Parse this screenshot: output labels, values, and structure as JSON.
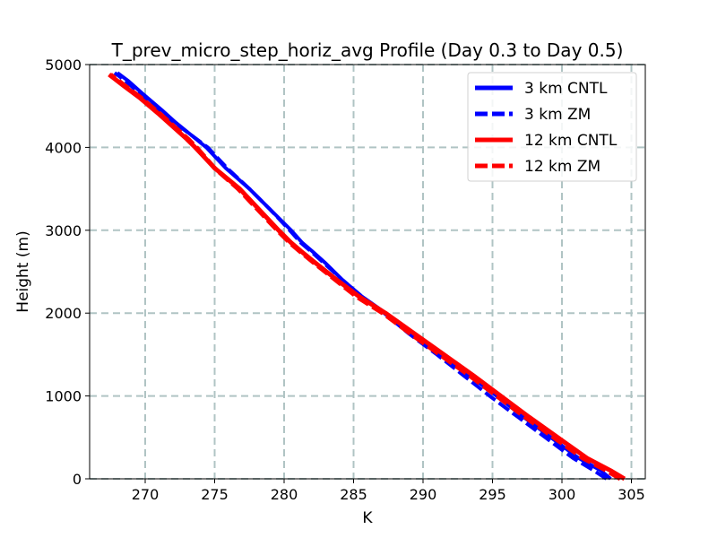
{
  "chart_data": {
    "type": "line",
    "title": "T_prev_micro_step_horiz_avg Profile (Day 0.3 to Day 0.5)",
    "xlabel": "K",
    "ylabel": "Height (m)",
    "xlim": [
      266,
      306
    ],
    "ylim": [
      0,
      5000
    ],
    "xticks": [
      270,
      275,
      280,
      285,
      290,
      295,
      300,
      305
    ],
    "yticks": [
      0,
      1000,
      2000,
      3000,
      4000,
      5000
    ],
    "grid": true,
    "legend_position": "top-right",
    "series": [
      {
        "name": "3 km CNTL",
        "color": "#0000ff",
        "style": "solid",
        "x": [
          303.5,
          302.8,
          301.2,
          299.2,
          297.2,
          295.3,
          293.3,
          291.3,
          289.3,
          287.3,
          285.6,
          284.2,
          283.0,
          282.0,
          281.3,
          280.5,
          279.0,
          277.5,
          275.8,
          274.4,
          273.3,
          272.2,
          271.2,
          269.8,
          268.8,
          268.0
        ],
        "y": [
          0,
          100,
          250,
          500,
          750,
          1000,
          1250,
          1500,
          1750,
          2000,
          2200,
          2400,
          2600,
          2750,
          2850,
          3000,
          3250,
          3500,
          3750,
          4000,
          4150,
          4300,
          4450,
          4650,
          4800,
          4900
        ]
      },
      {
        "name": "3 km ZM",
        "color": "#0000ff",
        "style": "dashed",
        "x": [
          303.2,
          302.3,
          300.8,
          298.8,
          296.8,
          294.8,
          292.9,
          291.0,
          289.0,
          287.2,
          285.6,
          284.2,
          282.9,
          281.9,
          281.2,
          280.4,
          279.0,
          277.5,
          275.9,
          274.5,
          273.3,
          272.1,
          271.0,
          269.6,
          268.6,
          267.8
        ],
        "y": [
          0,
          100,
          250,
          500,
          750,
          1000,
          1250,
          1500,
          1750,
          2000,
          2200,
          2400,
          2600,
          2750,
          2850,
          3000,
          3250,
          3500,
          3750,
          4000,
          4150,
          4300,
          4450,
          4650,
          4800,
          4900
        ]
      },
      {
        "name": "12 km CNTL",
        "color": "#ff0000",
        "style": "solid",
        "x": [
          304.5,
          303.5,
          301.8,
          299.7,
          297.6,
          295.6,
          293.6,
          291.5,
          289.4,
          287.3,
          285.4,
          283.8,
          282.3,
          281.2,
          280.5,
          279.6,
          278.2,
          276.8,
          275.0,
          273.6,
          273.0,
          272.0,
          271.0,
          269.6,
          268.4,
          267.4
        ],
        "y": [
          0,
          100,
          250,
          500,
          750,
          1000,
          1250,
          1500,
          1750,
          2000,
          2200,
          2400,
          2600,
          2750,
          2850,
          3000,
          3250,
          3500,
          3750,
          4000,
          4100,
          4250,
          4400,
          4600,
          4750,
          4880
        ]
      },
      {
        "name": "12 km ZM",
        "color": "#ff0000",
        "style": "dashed",
        "x": [
          304.2,
          303.2,
          301.5,
          299.4,
          297.3,
          295.3,
          293.3,
          291.2,
          289.1,
          287.1,
          285.2,
          283.7,
          282.2,
          281.1,
          280.4,
          279.5,
          278.1,
          276.7,
          275.0,
          273.7,
          273.1,
          272.1,
          271.1,
          269.7,
          268.5,
          267.5
        ],
        "y": [
          0,
          100,
          250,
          500,
          750,
          1000,
          1250,
          1500,
          1750,
          2000,
          2200,
          2400,
          2600,
          2750,
          2850,
          3000,
          3250,
          3500,
          3750,
          4000,
          4100,
          4250,
          4400,
          4600,
          4750,
          4880
        ]
      }
    ]
  }
}
